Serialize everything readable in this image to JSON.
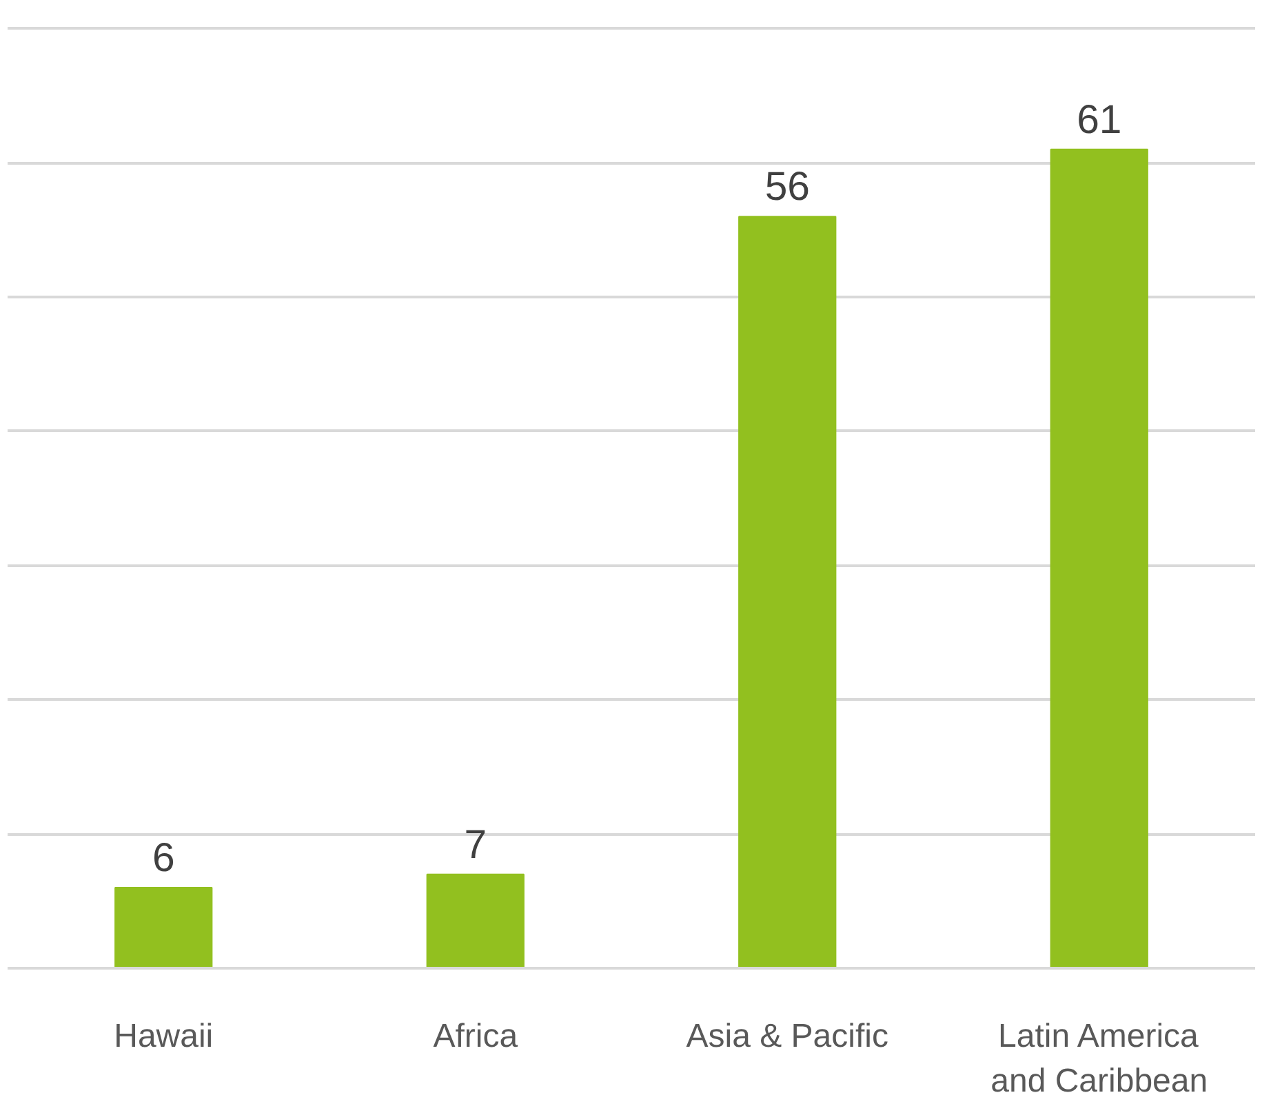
{
  "chart_data": {
    "type": "bar",
    "categories": [
      "Hawaii",
      "Africa",
      "Asia & Pacific",
      "Latin America\nand Caribbean"
    ],
    "values": [
      6,
      7,
      56,
      61
    ],
    "color": "#92c01f",
    "yticks": [
      {
        "value": 0,
        "label": null
      },
      {
        "value": 10,
        "label": null
      },
      {
        "value": 20,
        "label": null
      },
      {
        "value": 30,
        "label": null
      },
      {
        "value": 40,
        "label": null
      },
      {
        "value": 50,
        "label": null
      },
      {
        "value": 60,
        "label": null
      },
      {
        "value": 70,
        "label": null
      }
    ],
    "grid": "y",
    "tick_labels": "x",
    "data_labels": true
  }
}
